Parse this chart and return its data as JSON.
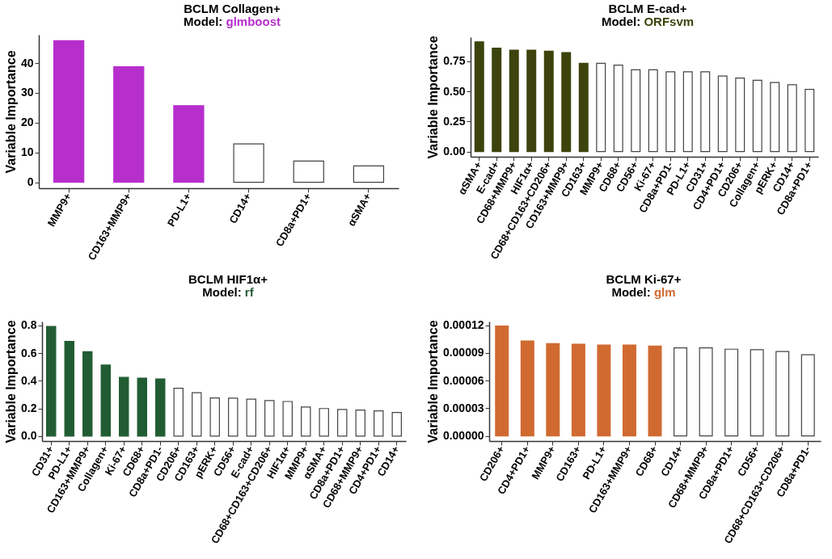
{
  "chart_data": [
    {
      "type": "bar",
      "title": "BCLM Collagen+",
      "subtitle": "Model: glmboost",
      "ylabel": "Variable Importance",
      "categories": [
        "MMP9+",
        "CD163+MMP9+",
        "PD-L1+",
        "CD14+",
        "CD8a+PD1+",
        "αSMA+"
      ],
      "values": [
        47.5,
        38.8,
        25.7,
        12.9,
        7.1,
        5.5
      ],
      "colors": [
        "#b62fcc",
        "#b62fcc",
        "#b62fcc",
        "#ffffff",
        "#ffffff",
        "#ffffff"
      ],
      "ylim": [
        -2,
        49.5
      ],
      "yticks": [
        0,
        10,
        20,
        30,
        40
      ],
      "grid": false
    },
    {
      "type": "bar",
      "title": "BCLM E-cad+",
      "subtitle": "Model: ORFsvm",
      "ylabel": "Variable Importance",
      "categories": [
        "αSMA+",
        "E-cad+",
        "CD68+MMP9+",
        "HIF1α+",
        "CD68+CD163+CD206+",
        "CD163+MMP9+",
        "CD163+",
        "MMP9+",
        "CD68+",
        "CD56+",
        "Ki-67+",
        "CD8a+PD1-",
        "PD-L1+",
        "CD31+",
        "CD4+PD1+",
        "CD206+",
        "Collagen+",
        "pERK+",
        "CD14+",
        "CD8a+PD1+"
      ],
      "values": [
        0.911,
        0.859,
        0.842,
        0.842,
        0.833,
        0.822,
        0.733,
        0.733,
        0.718,
        0.679,
        0.679,
        0.662,
        0.662,
        0.662,
        0.627,
        0.61,
        0.592,
        0.573,
        0.555,
        0.516
      ],
      "colors": [
        "#3d430c",
        "#3d430c",
        "#3d430c",
        "#3d430c",
        "#3d430c",
        "#3d430c",
        "#3d430c",
        "#ffffff",
        "#ffffff",
        "#ffffff",
        "#ffffff",
        "#ffffff",
        "#ffffff",
        "#ffffff",
        "#ffffff",
        "#ffffff",
        "#ffffff",
        "#ffffff",
        "#ffffff",
        "#ffffff"
      ],
      "ylim": [
        -0.043,
        0.95
      ],
      "yticks": [
        {
          "value": 0,
          "label": "0.00"
        },
        0.25,
        {
          "value": 0.5,
          "label": "0.50"
        },
        0.75
      ],
      "grid": false
    },
    {
      "type": "bar",
      "title": "BCLM HIF1α+",
      "subtitle": "Model: rf",
      "ylabel": "Variable Importance",
      "categories": [
        "CD31+",
        "PD-L1+",
        "CD163+MMP9+",
        "Collagen+",
        "Ki-67+",
        "CD68+",
        "CD8a+PD1-",
        "CD206+",
        "CD163+",
        "pERK+",
        "CD56+",
        "E-cad+",
        "CD68+CD163+CD206+",
        "HIF1α+",
        "MMP9+",
        "αSMA+",
        "CD8a+PD1+",
        "CD68+MMP9+",
        "CD4+PD1+",
        "CD14+"
      ],
      "values": [
        0.792,
        0.685,
        0.61,
        0.513,
        0.424,
        0.419,
        0.413,
        0.346,
        0.314,
        0.276,
        0.274,
        0.267,
        0.257,
        0.25,
        0.21,
        0.199,
        0.192,
        0.188,
        0.182,
        0.171
      ],
      "colors": [
        "#215c32",
        "#215c32",
        "#215c32",
        "#215c32",
        "#215c32",
        "#215c32",
        "#215c32",
        "#ffffff",
        "#ffffff",
        "#ffffff",
        "#ffffff",
        "#ffffff",
        "#ffffff",
        "#ffffff",
        "#ffffff",
        "#ffffff",
        "#ffffff",
        "#ffffff",
        "#ffffff",
        "#ffffff"
      ],
      "ylim": [
        -0.036,
        0.828
      ],
      "yticks": [
        {
          "value": 0,
          "label": "0.0"
        },
        0.2,
        0.4,
        0.6,
        0.8
      ],
      "grid": false
    },
    {
      "type": "bar",
      "title": "BCLM Ki-67+",
      "subtitle": "Model: glm",
      "ylabel": "Variable Importance",
      "categories": [
        "CD206+",
        "CD4+PD1+",
        "MMP9+",
        "CD163+",
        "PD-L1+",
        "CD163+MMP9+",
        "CD68+",
        "CD14+",
        "CD68+MMP9+",
        "CD8a+PD1+",
        "CD56+",
        "CD68+CD163+CD206+",
        "CD8a+PD1-"
      ],
      "values": [
        0.000119,
        0.000103,
        0.0001,
        9.95e-05,
        9.85e-05,
        9.85e-05,
        9.75e-05,
        9.55e-05,
        9.55e-05,
        9.4e-05,
        9.35e-05,
        9.15e-05,
        8.8e-05
      ],
      "colors": [
        "#d06a31",
        "#d06a31",
        "#d06a31",
        "#d06a31",
        "#d06a31",
        "#d06a31",
        "#d06a31",
        "#ffffff",
        "#ffffff",
        "#ffffff",
        "#ffffff",
        "#ffffff",
        "#ffffff"
      ],
      "ylim": [
        -5.6e-06,
        0.000124
      ],
      "yticks": [
        {
          "value": 0,
          "label": "0.00000"
        },
        {
          "value": 3e-05,
          "label": "0.00003"
        },
        {
          "value": 6e-05,
          "label": "0.00006"
        },
        {
          "value": 9e-05,
          "label": "0.00009"
        },
        {
          "value": 0.00012,
          "label": "0.00012"
        }
      ],
      "grid": false
    }
  ]
}
